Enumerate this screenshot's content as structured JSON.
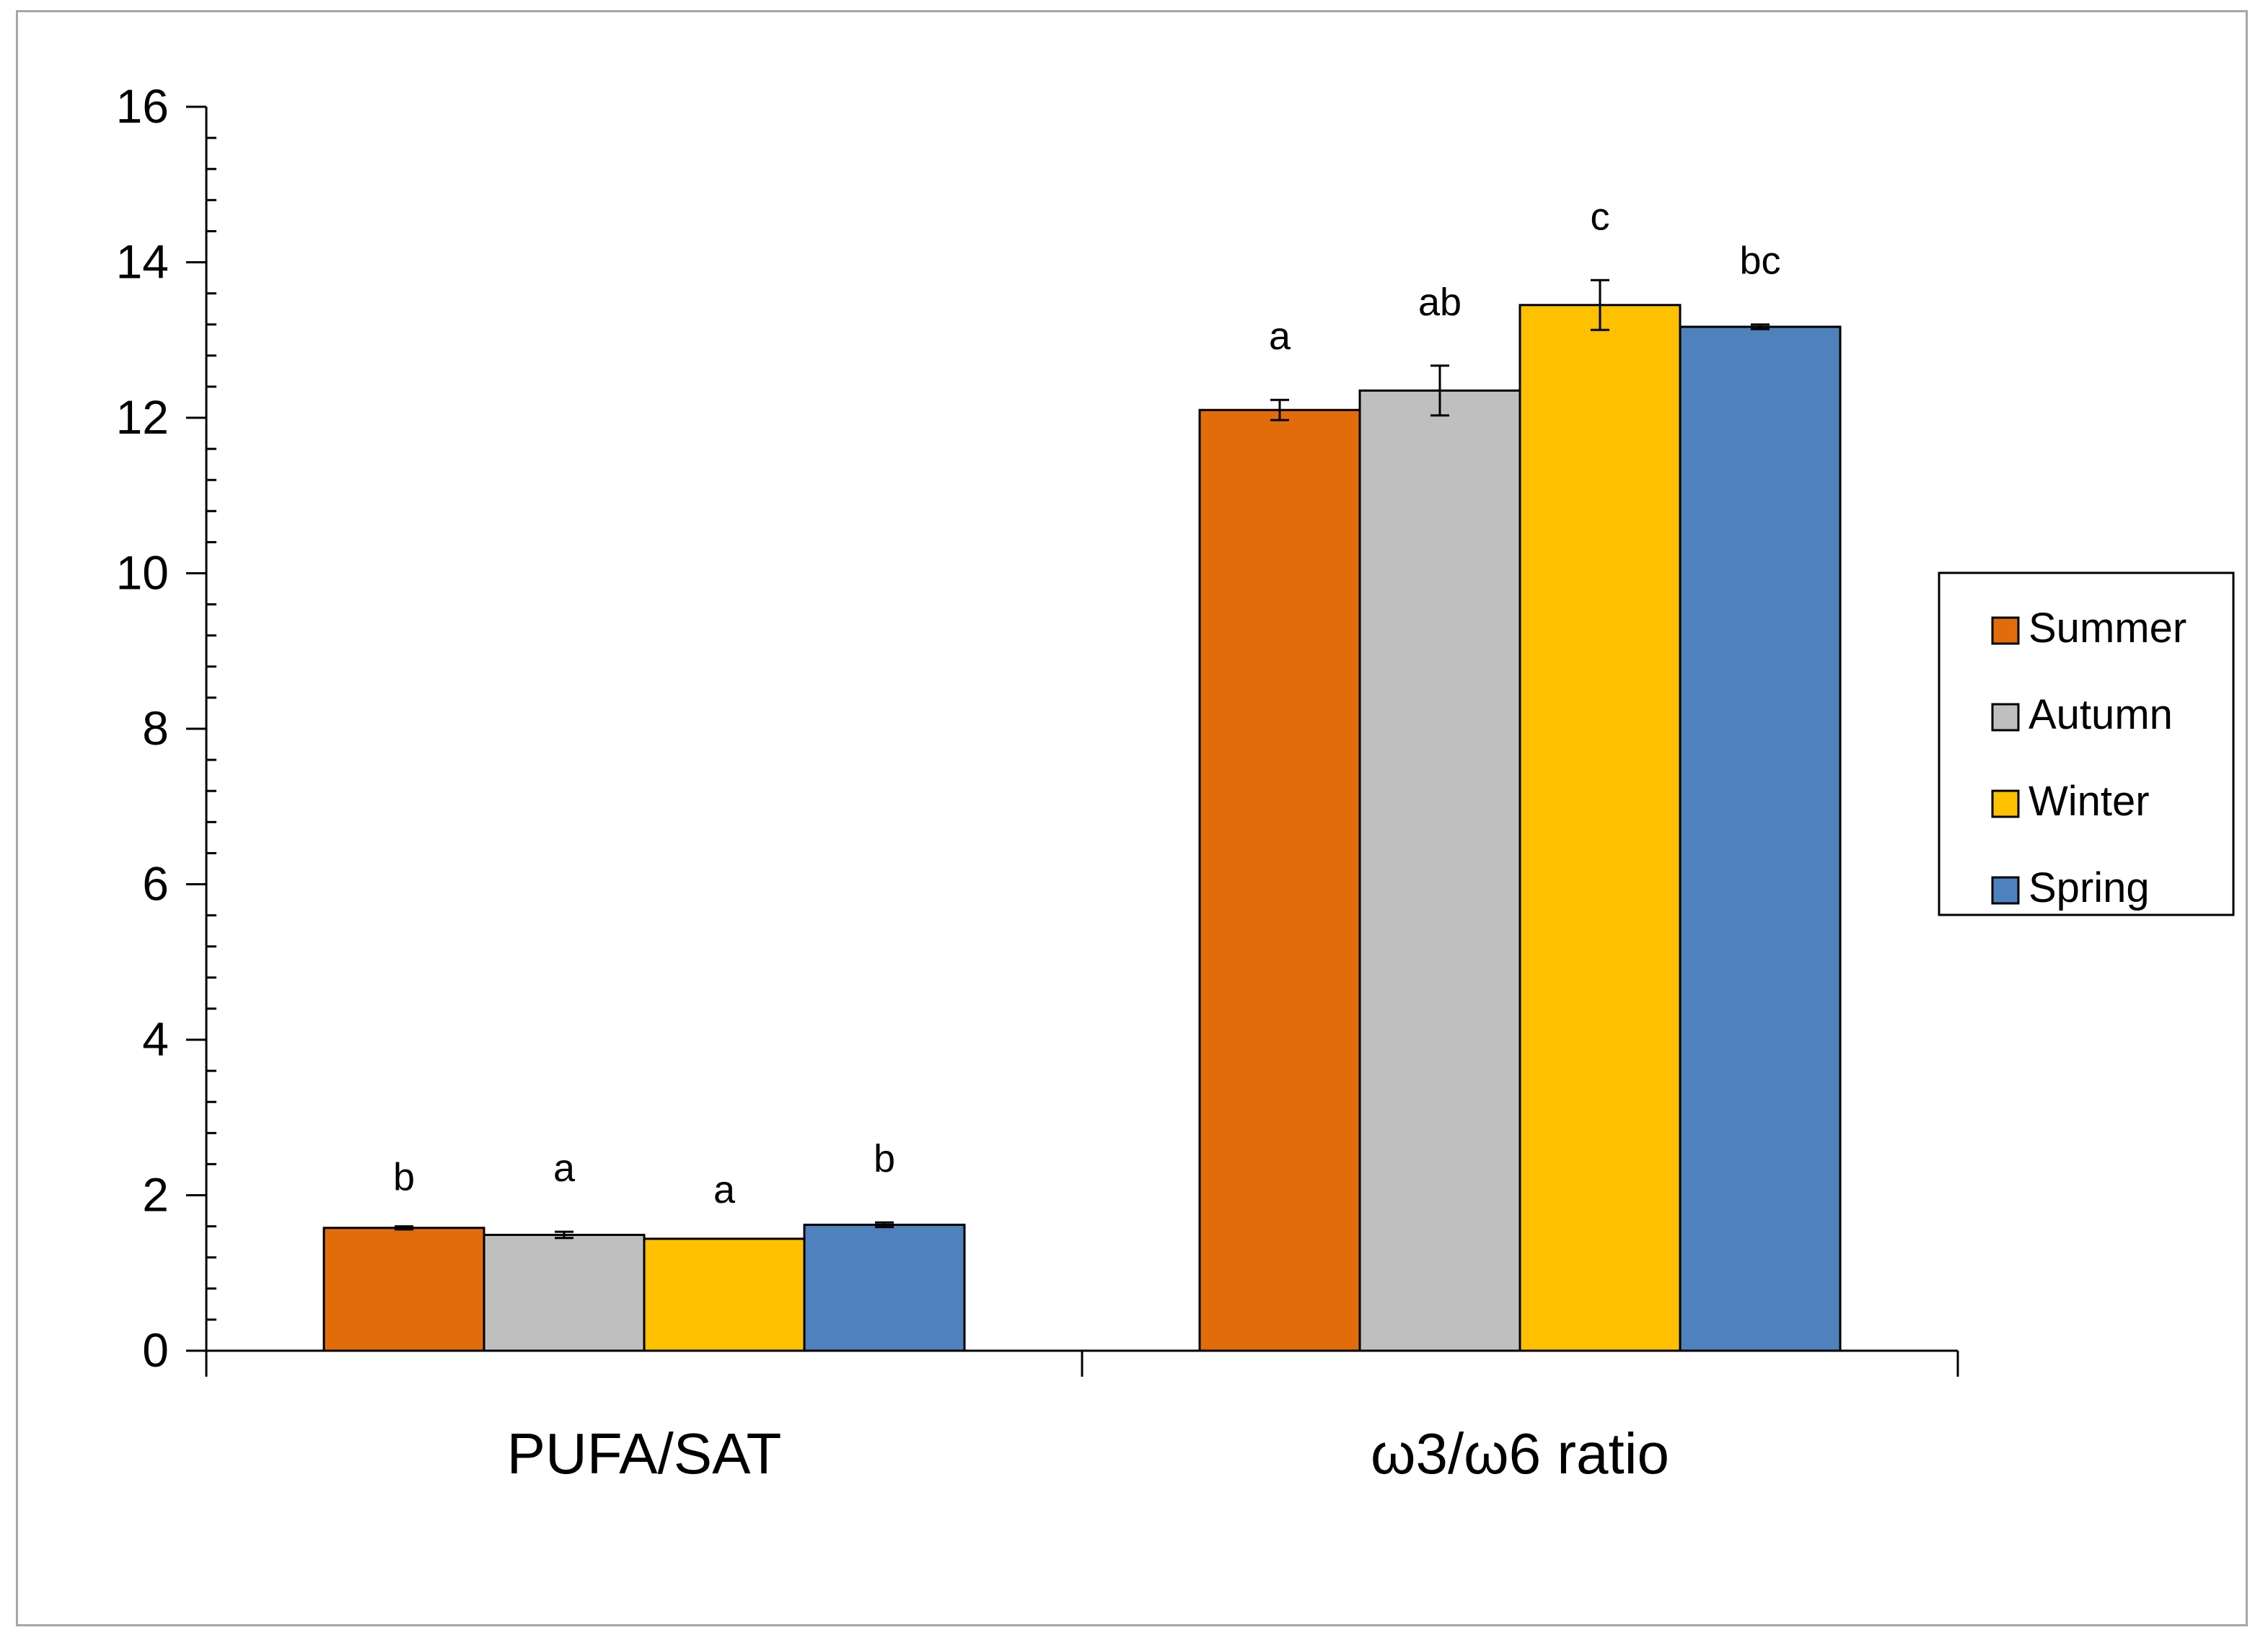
{
  "chart_data": {
    "type": "bar",
    "title": "",
    "xlabel": "",
    "ylabel": "",
    "ylim": [
      0,
      16
    ],
    "yticks": [
      "0",
      "2",
      "4",
      "6",
      "8",
      "10",
      "12",
      "14",
      "16"
    ],
    "grid": false,
    "legend_position": "right",
    "categories": [
      "PUFA/SAT",
      "ω3/ω6 ratio"
    ],
    "series": [
      {
        "name": "Summer",
        "color": "#e36c0a",
        "values": [
          1.58,
          12.1
        ],
        "errors": [
          0.02,
          0.13
        ],
        "letters": [
          "b",
          "a"
        ]
      },
      {
        "name": "Autumn",
        "color": "#bfbfbf",
        "values": [
          1.49,
          12.35
        ],
        "errors": [
          0.04,
          0.32
        ],
        "letters": [
          "a",
          "ab"
        ]
      },
      {
        "name": "Winter",
        "color": "#ffc000",
        "values": [
          1.44,
          13.45
        ],
        "errors": [
          0.0,
          0.32
        ],
        "letters": [
          "a",
          "c"
        ]
      },
      {
        "name": "Spring",
        "color": "#4f81bd",
        "values": [
          1.62,
          13.17
        ],
        "errors": [
          0.03,
          0.03
        ],
        "letters": [
          "b",
          "bc"
        ]
      }
    ]
  }
}
